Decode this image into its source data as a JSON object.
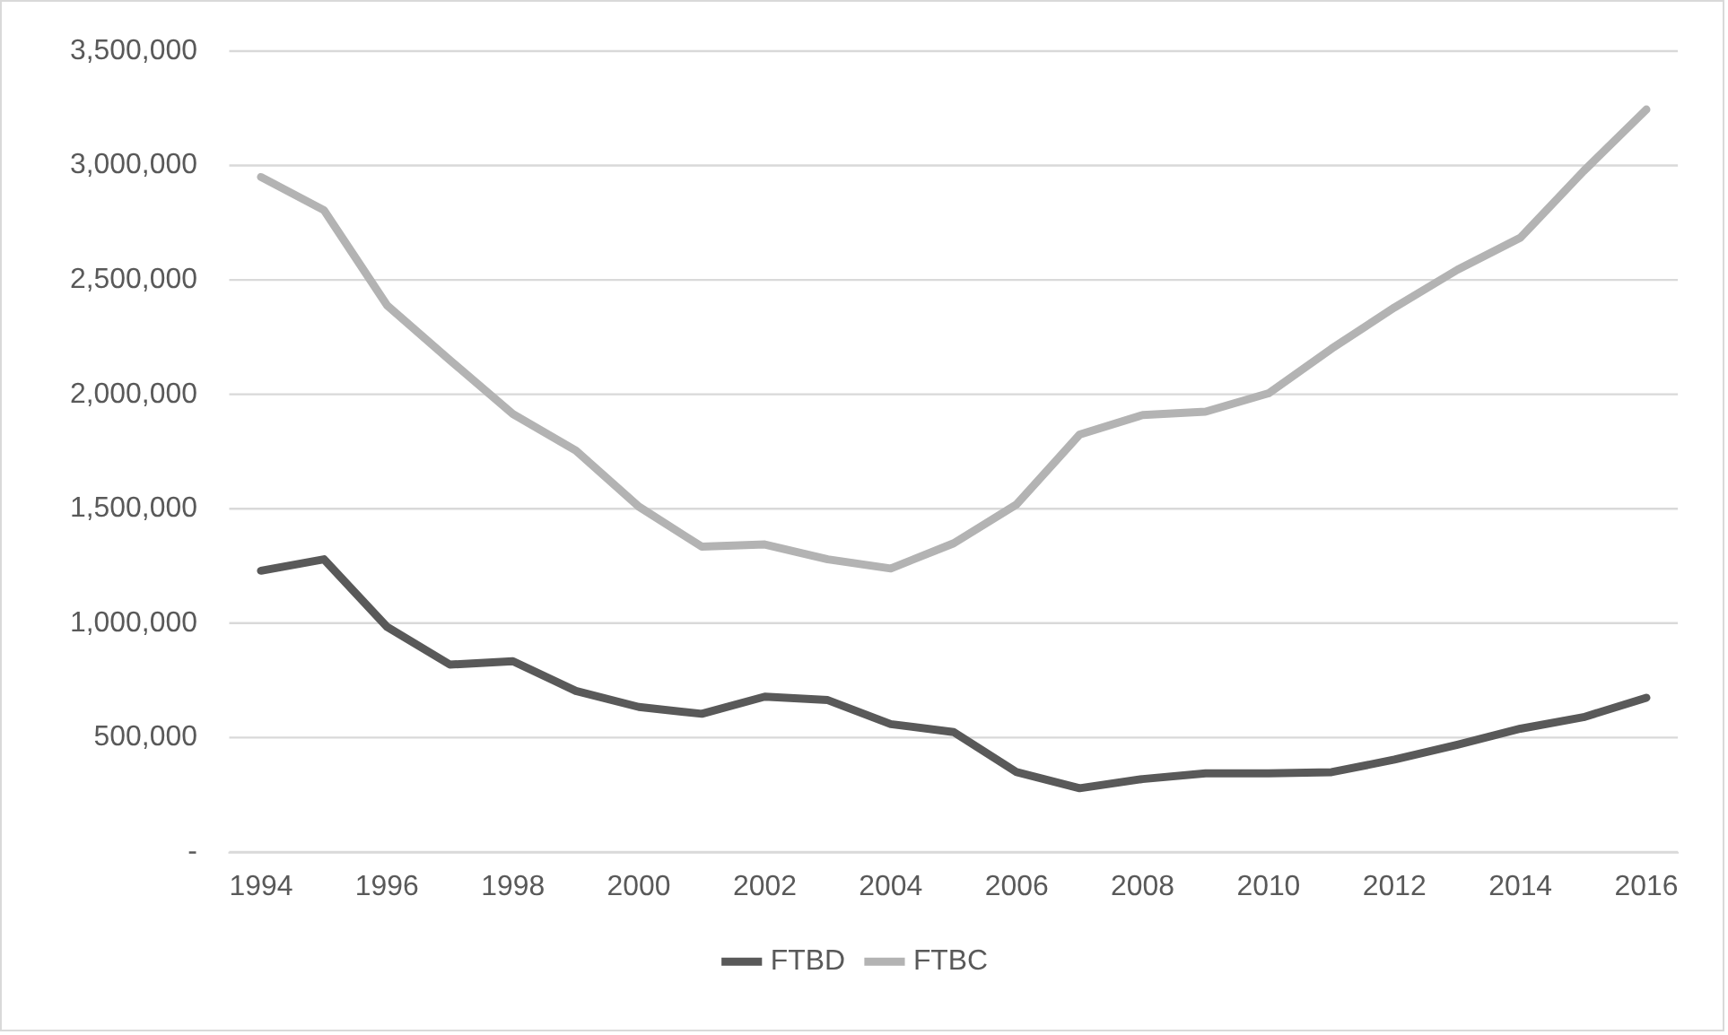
{
  "chart_data": {
    "type": "line",
    "categories": [
      "1994",
      null,
      "1996",
      null,
      "1998",
      null,
      "2000",
      null,
      "2002",
      null,
      "2004",
      null,
      "2006",
      null,
      "2008",
      null,
      "2010",
      null,
      "2012",
      null,
      "2014",
      null,
      "2016"
    ],
    "series": [
      {
        "name": "FTBD",
        "color": "#595959",
        "values": [
          1230000,
          1280000,
          985000,
          820000,
          835000,
          705000,
          635000,
          605000,
          680000,
          665000,
          560000,
          525000,
          350000,
          280000,
          320000,
          345000,
          345000,
          350000,
          405000,
          470000,
          540000,
          590000,
          675000
        ]
      },
      {
        "name": "FTBC",
        "color": "#b3b3b3",
        "values": [
          2950000,
          2805000,
          2390000,
          2150000,
          1915000,
          1755000,
          1510000,
          1335000,
          1345000,
          1280000,
          1240000,
          1350000,
          1520000,
          1825000,
          1910000,
          1925000,
          2005000,
          2200000,
          2380000,
          2545000,
          2685000,
          2975000,
          3245000
        ]
      }
    ],
    "ylim": [
      0,
      3500000
    ],
    "yticks": [
      {
        "value": 0,
        "label": "-"
      },
      {
        "value": 500000,
        "label": "500,000"
      },
      {
        "value": 1000000,
        "label": "1,000,000"
      },
      {
        "value": 1500000,
        "label": "1,500,000"
      },
      {
        "value": 2000000,
        "label": "2,000,000"
      },
      {
        "value": 2500000,
        "label": "2,500,000"
      },
      {
        "value": 3000000,
        "label": "3,000,000"
      },
      {
        "value": 3500000,
        "label": "3,500,000"
      }
    ],
    "grid": "y",
    "legend": "bottom",
    "marker": "none",
    "line_style": "solid"
  }
}
